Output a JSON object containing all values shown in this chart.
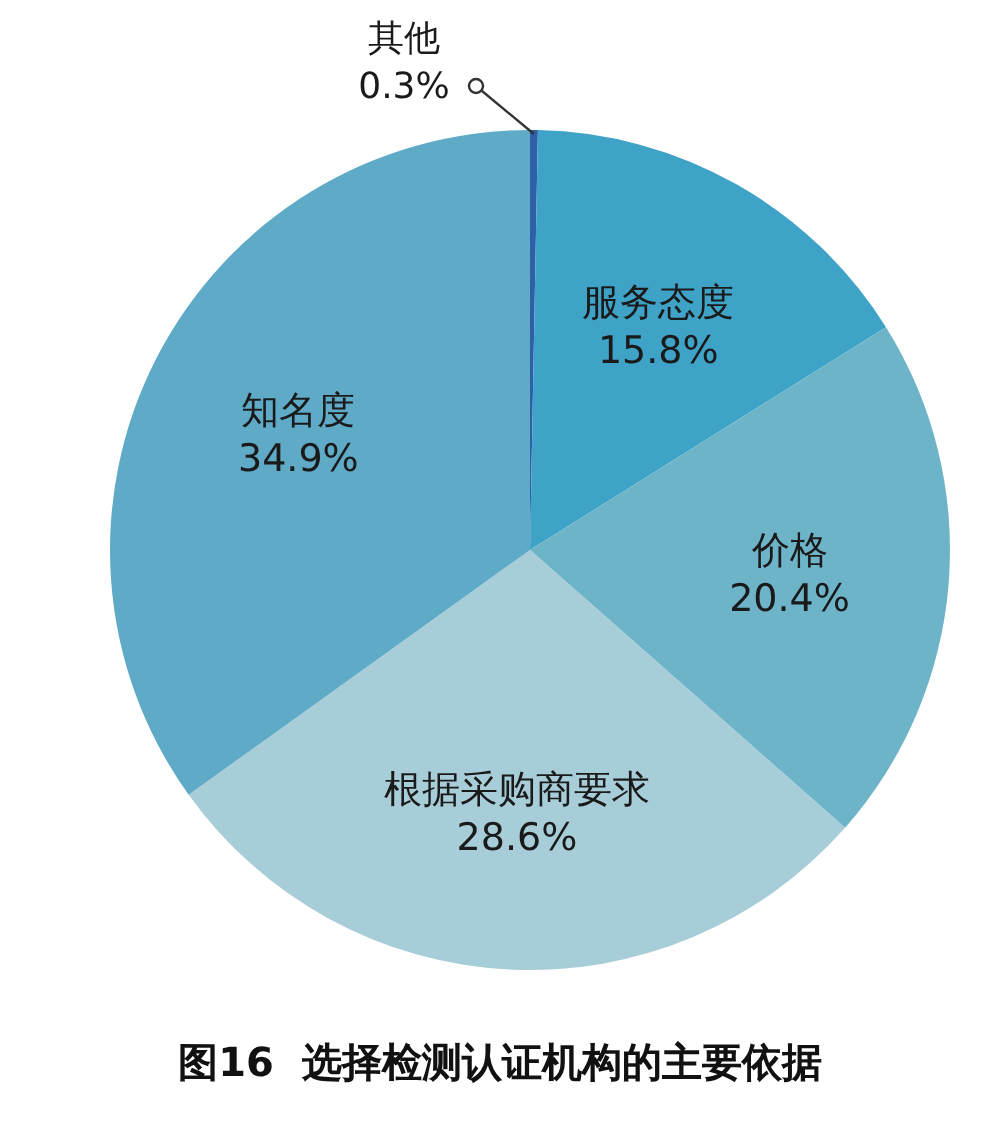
{
  "chart_data": {
    "type": "pie",
    "title": "图16  选择检测认证机构的主要依据",
    "categories": [
      "其他",
      "服务态度",
      "价格",
      "根据采购商要求",
      "知名度"
    ],
    "values": [
      0.3,
      15.8,
      20.4,
      28.6,
      34.9
    ],
    "colors": [
      "#2f5fa8",
      "#3fa3c8",
      "#6db4c9",
      "#a7cdd8",
      "#5eaac7"
    ],
    "value_labels": [
      "0.3%",
      "15.8%",
      "20.4%",
      "28.6%",
      "34.9%"
    ]
  }
}
